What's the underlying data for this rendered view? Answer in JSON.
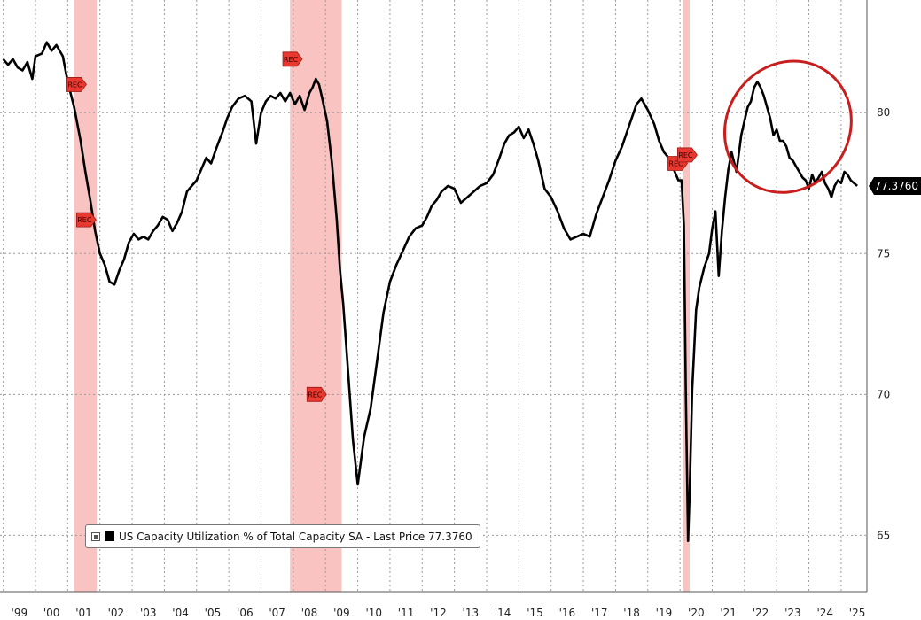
{
  "chart_data": {
    "type": "line",
    "title": "",
    "xlabel": "",
    "ylabel": "",
    "x_tick_labels": [
      "'99",
      "'00",
      "'01",
      "'02",
      "'03",
      "'04",
      "'05",
      "'06",
      "'07",
      "'08",
      "'09",
      "'10",
      "'11",
      "'12",
      "'13",
      "'14",
      "'15",
      "'16",
      "'17",
      "'18",
      "'19",
      "'20",
      "'21",
      "'22",
      "'23",
      "'24",
      "'25"
    ],
    "x_tick_years": [
      1999,
      2000,
      2001,
      2002,
      2003,
      2004,
      2005,
      2006,
      2007,
      2008,
      2009,
      2010,
      2011,
      2012,
      2013,
      2014,
      2015,
      2016,
      2017,
      2018,
      2019,
      2020,
      2021,
      2022,
      2023,
      2024,
      2025
    ],
    "xlim": [
      1998.9,
      2025.8
    ],
    "y_ticks": [
      65,
      70,
      75,
      80
    ],
    "y_tick_labels": [
      "65",
      "70",
      "75",
      "80"
    ],
    "ylim": [
      63.0,
      84.0
    ],
    "grid": true,
    "recessions": [
      [
        2001.2,
        2001.9
      ],
      [
        2007.9,
        2009.5
      ],
      [
        2020.1,
        2020.3
      ]
    ],
    "legend": {
      "position": "bottom-left",
      "text": "US Capacity Utilization % of Total Capacity SA - Last Price 77.3760"
    },
    "last_value_label": "77.3760",
    "rec_markers": [
      {
        "x": 2001.25,
        "y": 81.0,
        "label": "REC"
      },
      {
        "x": 2001.55,
        "y": 76.2,
        "label": "REC"
      },
      {
        "x": 2007.95,
        "y": 81.9,
        "label": "REC"
      },
      {
        "x": 2008.7,
        "y": 70.0,
        "label": "REC"
      },
      {
        "x": 2019.9,
        "y": 78.2,
        "label": "REC"
      },
      {
        "x": 2020.2,
        "y": 78.5,
        "label": "REC"
      }
    ],
    "ellipse_annotation": {
      "cx": 2023.35,
      "cy": 79.5,
      "rx_years": 1.9,
      "ry_units": 2.4,
      "rotation_deg": 34,
      "color": "#c81e1e"
    },
    "series": [
      {
        "name": "US Capacity Utilization % of Total Capacity SA",
        "color": "#000000",
        "x": [
          1999.0,
          1999.15,
          1999.3,
          1999.45,
          1999.6,
          1999.75,
          1999.9,
          2000.0,
          2000.2,
          2000.35,
          2000.5,
          2000.65,
          2000.85,
          2001.0,
          2001.2,
          2001.4,
          2001.55,
          2001.7,
          2001.85,
          2002.0,
          2002.15,
          2002.3,
          2002.45,
          2002.6,
          2002.75,
          2002.9,
          2003.05,
          2003.2,
          2003.35,
          2003.5,
          2003.65,
          2003.8,
          2003.95,
          2004.1,
          2004.25,
          2004.4,
          2004.55,
          2004.7,
          2004.85,
          2005.0,
          2005.15,
          2005.3,
          2005.45,
          2005.6,
          2005.7,
          2005.8,
          2005.95,
          2006.1,
          2006.3,
          2006.5,
          2006.7,
          2006.85,
          2007.0,
          2007.15,
          2007.3,
          2007.45,
          2007.6,
          2007.75,
          2007.9,
          2008.05,
          2008.2,
          2008.35,
          2008.5,
          2008.6,
          2008.7,
          2008.8,
          2008.9,
          2009.05,
          2009.2,
          2009.35,
          2009.45,
          2009.55,
          2009.7,
          2009.85,
          2010.0,
          2010.2,
          2010.4,
          2010.6,
          2010.8,
          2011.0,
          2011.2,
          2011.4,
          2011.6,
          2011.8,
          2012.0,
          2012.15,
          2012.3,
          2012.45,
          2012.6,
          2012.8,
          2013.0,
          2013.2,
          2013.4,
          2013.6,
          2013.8,
          2014.0,
          2014.2,
          2014.4,
          2014.55,
          2014.7,
          2014.85,
          2015.0,
          2015.15,
          2015.3,
          2015.45,
          2015.6,
          2015.8,
          2016.0,
          2016.2,
          2016.4,
          2016.6,
          2016.8,
          2017.0,
          2017.2,
          2017.4,
          2017.6,
          2017.8,
          2018.0,
          2018.2,
          2018.35,
          2018.5,
          2018.65,
          2018.8,
          2019.0,
          2019.2,
          2019.35,
          2019.5,
          2019.65,
          2019.8,
          2019.95,
          2020.05,
          2020.12,
          2020.18,
          2020.25,
          2020.3,
          2020.38,
          2020.5,
          2020.6,
          2020.75,
          2020.9,
          2021.0,
          2021.1,
          2021.2,
          2021.3,
          2021.4,
          2021.5,
          2021.6,
          2021.75,
          2021.9,
          2022.0,
          2022.1,
          2022.2,
          2022.3,
          2022.4,
          2022.5,
          2022.6,
          2022.7,
          2022.8,
          2022.9,
          2023.0,
          2023.1,
          2023.2,
          2023.3,
          2023.4,
          2023.5,
          2023.6,
          2023.7,
          2023.8,
          2023.9,
          2024.0,
          2024.1,
          2024.2,
          2024.3,
          2024.4,
          2024.5,
          2024.6,
          2024.7,
          2024.8,
          2024.9,
          2025.0,
          2025.1,
          2025.2,
          2025.3,
          2025.4,
          2025.5
        ],
        "values": [
          81.9,
          81.7,
          81.9,
          81.6,
          81.5,
          81.8,
          81.2,
          82.0,
          82.1,
          82.5,
          82.2,
          82.4,
          82.0,
          81.1,
          80.2,
          79.0,
          77.9,
          76.9,
          75.8,
          75.0,
          74.6,
          74.0,
          73.9,
          74.4,
          74.8,
          75.4,
          75.7,
          75.5,
          75.6,
          75.5,
          75.8,
          76.0,
          76.3,
          76.2,
          75.8,
          76.1,
          76.5,
          77.2,
          77.4,
          77.6,
          78.0,
          78.4,
          78.2,
          78.7,
          79.0,
          79.3,
          79.8,
          80.2,
          80.5,
          80.6,
          80.4,
          78.9,
          80.0,
          80.4,
          80.6,
          80.5,
          80.7,
          80.4,
          80.7,
          80.3,
          80.6,
          80.1,
          80.7,
          80.9,
          81.2,
          81.0,
          80.5,
          79.7,
          78.2,
          76.2,
          74.4,
          73.2,
          70.8,
          68.4,
          66.8,
          68.5,
          69.5,
          71.2,
          72.9,
          74.0,
          74.6,
          75.1,
          75.6,
          75.9,
          76.0,
          76.3,
          76.7,
          76.9,
          77.2,
          77.4,
          77.3,
          76.8,
          77.0,
          77.2,
          77.4,
          77.5,
          77.8,
          78.4,
          78.9,
          79.2,
          79.3,
          79.5,
          79.1,
          79.4,
          78.9,
          78.3,
          77.3,
          77.0,
          76.5,
          75.9,
          75.5,
          75.6,
          75.7,
          75.6,
          76.4,
          77.0,
          77.6,
          78.3,
          78.8,
          79.3,
          79.8,
          80.3,
          80.5,
          80.1,
          79.6,
          79.0,
          78.6,
          78.4,
          78.0,
          77.6,
          77.6,
          76.0,
          70.0,
          64.8,
          66.5,
          70.2,
          73.0,
          73.8,
          74.5,
          75.0,
          75.9,
          76.5,
          74.2,
          75.8,
          77.0,
          78.0,
          78.6,
          77.9,
          79.2,
          79.7,
          80.2,
          80.4,
          80.9,
          81.1,
          80.9,
          80.6,
          80.2,
          79.8,
          79.2,
          79.4,
          79.0,
          79.0,
          78.8,
          78.4,
          78.3,
          78.1,
          77.9,
          77.7,
          77.6,
          77.3,
          77.8,
          77.5,
          77.7,
          77.9,
          77.5,
          77.3,
          77.0,
          77.4,
          77.6,
          77.5,
          77.9,
          77.8,
          77.6,
          77.5,
          77.4
        ]
      }
    ]
  }
}
